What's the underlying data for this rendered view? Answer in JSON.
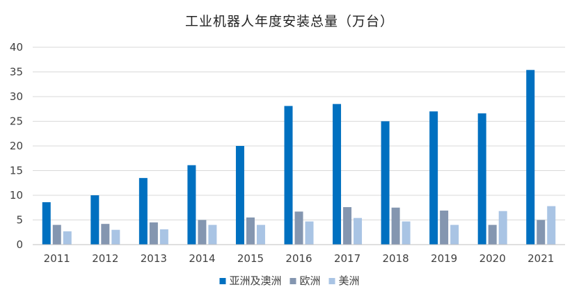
{
  "chart_data": {
    "type": "bar",
    "title": "工业机器人年度安装总量（万台）",
    "xlabel": "",
    "ylabel": "",
    "categories": [
      "2011",
      "2012",
      "2013",
      "2014",
      "2015",
      "2016",
      "2017",
      "2018",
      "2019",
      "2020",
      "2021"
    ],
    "series": [
      {
        "name": "亚洲及澳洲",
        "color": "#0070c0",
        "values": [
          8.6,
          10.0,
          13.5,
          16.1,
          20.0,
          28.1,
          28.5,
          25.0,
          27.0,
          26.6,
          35.4
        ]
      },
      {
        "name": "欧洲",
        "color": "#8496b0",
        "values": [
          4.0,
          4.2,
          4.5,
          5.0,
          5.5,
          6.7,
          7.6,
          7.5,
          6.9,
          4.0,
          5.0
        ]
      },
      {
        "name": "美洲",
        "color": "#a9c4e4",
        "values": [
          2.7,
          3.0,
          3.1,
          4.0,
          4.0,
          4.7,
          5.4,
          4.7,
          4.0,
          6.8,
          7.8
        ]
      }
    ],
    "ylim": [
      0,
      40
    ],
    "yticks": [
      "0",
      "5",
      "10",
      "15",
      "20",
      "25",
      "30",
      "35",
      "40"
    ],
    "grid": true,
    "legend_position": "bottom"
  }
}
